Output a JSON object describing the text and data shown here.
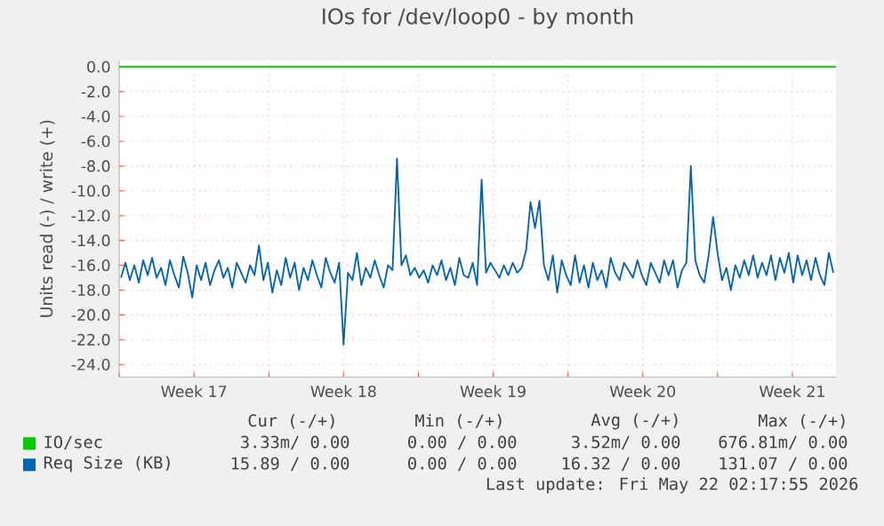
{
  "chart_data": {
    "type": "line",
    "title": "IOs for /dev/loop0 - by month",
    "ylabel": "Units read (-) / write (+)",
    "xlim": [
      "2026-04-20",
      "2026-05-23T13:00"
    ],
    "ylim": [
      -25,
      0.5
    ],
    "xticks": [
      {
        "value": "2026-04-20",
        "label": null
      },
      {
        "value": "2026-04-23T12:00",
        "label": "Week 17"
      },
      {
        "value": "2026-04-27",
        "label": null
      },
      {
        "value": "2026-04-30T12:00",
        "label": "Week 18"
      },
      {
        "value": "2026-05-04",
        "label": null
      },
      {
        "value": "2026-05-07T12:00",
        "label": "Week 19"
      },
      {
        "value": "2026-05-11",
        "label": null
      },
      {
        "value": "2026-05-14T12:00",
        "label": "Week 20"
      },
      {
        "value": "2026-05-18",
        "label": null
      },
      {
        "value": "2026-05-21T12:00",
        "label": "Week 21"
      }
    ],
    "yticks": [
      {
        "value": 0,
        "label": "0.0"
      },
      {
        "value": -2,
        "label": "-2.0"
      },
      {
        "value": -4,
        "label": "-4.0"
      },
      {
        "value": -6,
        "label": "-6.0"
      },
      {
        "value": -8,
        "label": "-8.0"
      },
      {
        "value": -10,
        "label": "-10.0"
      },
      {
        "value": -12,
        "label": "-12.0"
      },
      {
        "value": -14,
        "label": "-14.0"
      },
      {
        "value": -16,
        "label": "-16.0"
      },
      {
        "value": -18,
        "label": "-18.0"
      },
      {
        "value": -20,
        "label": "-20.0"
      },
      {
        "value": -22,
        "label": "-22.0"
      },
      {
        "value": -24,
        "label": "-24.0"
      }
    ],
    "grid": true,
    "legend": "bottom",
    "marker": "none",
    "line_style": "solid",
    "series": [
      {
        "name": "IO/sec",
        "color": "#00cc00",
        "x": [
          "2026-04-20",
          "2026-05-23T13:00"
        ],
        "values": [
          0,
          0
        ]
      },
      {
        "name": "Req Size (KB)",
        "color": "#0066b3",
        "x": [
          "2026-04-20T02:00",
          "2026-04-20T07:00",
          "2026-04-20T12:00",
          "2026-04-20T17:00",
          "2026-04-20T22:00",
          "2026-04-21T03:00",
          "2026-04-21T08:00",
          "2026-04-21T13:00",
          "2026-04-21T18:00",
          "2026-04-21T23:00",
          "2026-04-22T04:00",
          "2026-04-22T09:00",
          "2026-04-22T14:00",
          "2026-04-22T19:00",
          "2026-04-23T00:00",
          "2026-04-23T05:00",
          "2026-04-23T10:00",
          "2026-04-23T15:00",
          "2026-04-23T20:00",
          "2026-04-24T01:00",
          "2026-04-24T06:00",
          "2026-04-24T11:00",
          "2026-04-24T16:00",
          "2026-04-24T21:00",
          "2026-04-25T02:00",
          "2026-04-25T07:00",
          "2026-04-25T12:00",
          "2026-04-25T17:00",
          "2026-04-25T22:00",
          "2026-04-26T03:00",
          "2026-04-26T08:00",
          "2026-04-26T13:00",
          "2026-04-26T18:00",
          "2026-04-26T23:00",
          "2026-04-27T04:00",
          "2026-04-27T09:00",
          "2026-04-27T14:00",
          "2026-04-27T19:00",
          "2026-04-28T00:00",
          "2026-04-28T05:00",
          "2026-04-28T10:00",
          "2026-04-28T15:00",
          "2026-04-28T20:00",
          "2026-04-29T01:00",
          "2026-04-29T06:00",
          "2026-04-29T11:00",
          "2026-04-29T16:00",
          "2026-04-29T21:00",
          "2026-04-30T02:00",
          "2026-04-30T07:00",
          "2026-04-30T12:00",
          "2026-04-30T17:00",
          "2026-04-30T22:00",
          "2026-05-01T03:00",
          "2026-05-01T08:00",
          "2026-05-01T13:00",
          "2026-05-01T18:00",
          "2026-05-01T23:00",
          "2026-05-02T04:00",
          "2026-05-02T09:00",
          "2026-05-02T14:00",
          "2026-05-02T19:00",
          "2026-05-03T00:00",
          "2026-05-03T05:00",
          "2026-05-03T10:00",
          "2026-05-03T15:00",
          "2026-05-03T20:00",
          "2026-05-04T01:00",
          "2026-05-04T06:00",
          "2026-05-04T11:00",
          "2026-05-04T16:00",
          "2026-05-04T21:00",
          "2026-05-05T02:00",
          "2026-05-05T07:00",
          "2026-05-05T12:00",
          "2026-05-05T17:00",
          "2026-05-05T22:00",
          "2026-05-06T03:00",
          "2026-05-06T08:00",
          "2026-05-06T13:00",
          "2026-05-06T18:00",
          "2026-05-06T23:00",
          "2026-05-07T04:00",
          "2026-05-07T09:00",
          "2026-05-07T14:00",
          "2026-05-07T19:00",
          "2026-05-08T00:00",
          "2026-05-08T05:00",
          "2026-05-08T10:00",
          "2026-05-08T15:00",
          "2026-05-08T20:00",
          "2026-05-09T01:00",
          "2026-05-09T06:00",
          "2026-05-09T11:00",
          "2026-05-09T16:00",
          "2026-05-09T21:00",
          "2026-05-10T02:00",
          "2026-05-10T07:00",
          "2026-05-10T12:00",
          "2026-05-10T17:00",
          "2026-05-10T22:00",
          "2026-05-11T03:00",
          "2026-05-11T08:00",
          "2026-05-11T13:00",
          "2026-05-11T18:00",
          "2026-05-11T23:00",
          "2026-05-12T04:00",
          "2026-05-12T09:00",
          "2026-05-12T14:00",
          "2026-05-12T19:00",
          "2026-05-13T00:00",
          "2026-05-13T05:00",
          "2026-05-13T10:00",
          "2026-05-13T15:00",
          "2026-05-13T20:00",
          "2026-05-14T01:00",
          "2026-05-14T06:00",
          "2026-05-14T11:00",
          "2026-05-14T16:00",
          "2026-05-14T21:00",
          "2026-05-15T02:00",
          "2026-05-15T07:00",
          "2026-05-15T12:00",
          "2026-05-15T17:00",
          "2026-05-15T22:00",
          "2026-05-16T03:00",
          "2026-05-16T08:00",
          "2026-05-16T13:00",
          "2026-05-16T18:00",
          "2026-05-16T23:00",
          "2026-05-17T04:00",
          "2026-05-17T09:00",
          "2026-05-17T14:00",
          "2026-05-17T19:00",
          "2026-05-18T00:00",
          "2026-05-18T05:00",
          "2026-05-18T10:00",
          "2026-05-18T15:00",
          "2026-05-18T20:00",
          "2026-05-19T01:00",
          "2026-05-19T06:00",
          "2026-05-19T11:00",
          "2026-05-19T16:00",
          "2026-05-19T21:00",
          "2026-05-20T02:00",
          "2026-05-20T07:00",
          "2026-05-20T12:00",
          "2026-05-20T17:00",
          "2026-05-20T22:00",
          "2026-05-21T03:00",
          "2026-05-21T08:00",
          "2026-05-21T13:00",
          "2026-05-21T18:00",
          "2026-05-21T23:00",
          "2026-05-22T04:00",
          "2026-05-22T09:00",
          "2026-05-22T14:00",
          "2026-05-22T19:00",
          "2026-05-23T00:00",
          "2026-05-23T05:00",
          "2026-05-23T10:00"
        ],
        "values": [
          -17.0,
          -15.8,
          -17.2,
          -16.0,
          -17.4,
          -15.6,
          -16.8,
          -15.4,
          -17.0,
          -16.2,
          -17.6,
          -15.6,
          -16.8,
          -17.8,
          -15.3,
          -16.6,
          -18.6,
          -16.0,
          -17.2,
          -15.8,
          -17.6,
          -16.4,
          -15.6,
          -17.0,
          -16.2,
          -17.8,
          -15.8,
          -16.6,
          -17.4,
          -16.0,
          -16.8,
          -14.4,
          -17.2,
          -15.8,
          -18.2,
          -16.4,
          -17.6,
          -15.4,
          -17.0,
          -15.8,
          -18.0,
          -16.2,
          -17.2,
          -15.6,
          -16.8,
          -17.8,
          -15.4,
          -16.6,
          -17.4,
          -15.8,
          -22.4,
          -16.6,
          -17.2,
          -15.0,
          -17.6,
          -16.2,
          -17.0,
          -15.6,
          -16.8,
          -17.8,
          -16.0,
          -16.4,
          -7.4,
          -16.0,
          -15.2,
          -16.8,
          -16.2,
          -17.0,
          -16.4,
          -17.4,
          -16.0,
          -16.8,
          -15.6,
          -17.2,
          -16.2,
          -17.6,
          -15.4,
          -16.8,
          -17.0,
          -15.8,
          -17.6,
          -9.1,
          -16.6,
          -15.8,
          -16.4,
          -17.0,
          -16.0,
          -16.8,
          -15.8,
          -16.6,
          -16.2,
          -14.8,
          -10.9,
          -13.0,
          -10.8,
          -16.0,
          -17.2,
          -15.2,
          -18.2,
          -15.6,
          -16.8,
          -17.6,
          -15.2,
          -17.4,
          -16.0,
          -17.8,
          -15.8,
          -17.2,
          -16.4,
          -17.8,
          -15.4,
          -16.6,
          -17.2,
          -15.8,
          -16.4,
          -17.0,
          -15.6,
          -16.8,
          -17.6,
          -15.8,
          -16.6,
          -17.4,
          -15.6,
          -16.8,
          -15.6,
          -17.8,
          -16.4,
          -15.8,
          -8.0,
          -15.6,
          -16.8,
          -17.4,
          -15.2,
          -12.1,
          -15.0,
          -17.2,
          -16.2,
          -18.0,
          -16.0,
          -17.0,
          -15.6,
          -16.8,
          -15.2,
          -17.0,
          -15.8,
          -16.8,
          -15.2,
          -17.2,
          -15.4,
          -16.6,
          -15.0,
          -17.4,
          -15.2,
          -16.8,
          -15.6,
          -17.2,
          -15.4,
          -16.8,
          -17.6,
          -15.0,
          -16.6
        ]
      }
    ],
    "annotations": [
      "Cur (-/+)",
      "Min (-/+)",
      "Avg (-/+)",
      "Max (-/+)",
      "3.33m/ 0.00",
      "0.00 / 0.00",
      "3.52m/ 0.00",
      "676.81m/ 0.00",
      "15.89 / 0.00",
      "0.00 / 0.00",
      "16.32 / 0.00",
      "131.07 / 0.00",
      "Last update: Fri May 22 02:17:55 2026"
    ]
  }
}
